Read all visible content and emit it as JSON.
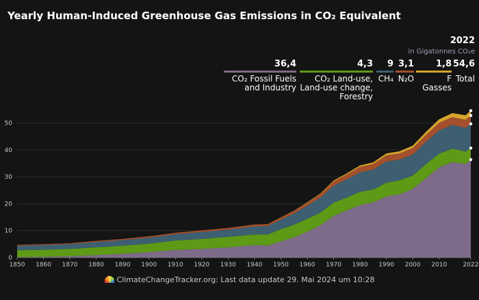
{
  "title": "Yearly Human-Induced Greenhouse Gas Emissions in CO₂ Equivalent",
  "summary": {
    "year": "2022",
    "unit": "in Gigatonnes CO₂e"
  },
  "legend": [
    {
      "value": "36,4",
      "label": "CO₂ Fossil Fuels\nand Industry",
      "color": "#7e6b8a"
    },
    {
      "value": "4,3",
      "label": "CO₂ Land-use,\nLand-use change,\nForestry",
      "color": "#5e9a16"
    },
    {
      "value": "9",
      "label": "CH₄",
      "color": "#3e5f72"
    },
    {
      "value": "3,1",
      "label": "N₂O",
      "color": "#a4502c"
    },
    {
      "value": "1,8",
      "label": "F Gasses",
      "color": "#d6a42c"
    },
    {
      "value": "54,6",
      "label": "Total",
      "color": "#141414"
    }
  ],
  "footer": "ClimateChangeTracker.org: Last data update 29. Mai 2024 um 10:28",
  "chart_data": {
    "type": "area",
    "stacked": true,
    "x": [
      1850,
      1860,
      1870,
      1880,
      1890,
      1900,
      1910,
      1920,
      1930,
      1940,
      1945,
      1950,
      1955,
      1960,
      1965,
      1970,
      1975,
      1980,
      1985,
      1990,
      1995,
      2000,
      2005,
      2010,
      2015,
      2020,
      2022
    ],
    "series": [
      {
        "name": "CO₂ Fossil Fuels and Industry",
        "color": "#7e6b8a",
        "values": [
          0.2,
          0.3,
          0.5,
          0.9,
          1.4,
          2.0,
          2.8,
          3.2,
          3.8,
          4.6,
          4.5,
          6.0,
          7.5,
          9.6,
          12.0,
          15.5,
          17.5,
          19.5,
          20.5,
          22.7,
          23.5,
          25.5,
          29.5,
          33.5,
          35.5,
          34.8,
          36.4
        ]
      },
      {
        "name": "CO₂ Land-use, Land-use change, Forestry",
        "color": "#5e9a16",
        "values": [
          2.5,
          2.6,
          2.7,
          2.9,
          3.0,
          3.2,
          3.5,
          3.7,
          3.9,
          4.0,
          4.1,
          4.5,
          4.7,
          4.8,
          4.7,
          4.9,
          4.8,
          4.9,
          4.8,
          5.1,
          5.2,
          5.0,
          5.2,
          5.1,
          5.0,
          4.6,
          4.3
        ]
      },
      {
        "name": "CH₄",
        "color": "#3e5f72",
        "values": [
          1.7,
          1.8,
          1.8,
          2.0,
          2.1,
          2.2,
          2.4,
          2.6,
          2.7,
          3.0,
          3.1,
          3.6,
          4.2,
          4.9,
          5.6,
          6.3,
          6.8,
          7.3,
          7.4,
          7.9,
          7.7,
          7.8,
          8.3,
          8.7,
          8.8,
          8.8,
          9.0
        ]
      },
      {
        "name": "N₂O",
        "color": "#a4502c",
        "values": [
          0.3,
          0.3,
          0.3,
          0.4,
          0.4,
          0.5,
          0.5,
          0.6,
          0.6,
          0.7,
          0.7,
          0.8,
          0.9,
          1.1,
          1.3,
          1.6,
          1.8,
          2.0,
          2.1,
          2.3,
          2.3,
          2.4,
          2.6,
          2.8,
          2.9,
          3.0,
          3.1
        ]
      },
      {
        "name": "F Gasses",
        "color": "#d6a42c",
        "values": [
          0,
          0,
          0,
          0,
          0,
          0,
          0,
          0,
          0,
          0,
          0,
          0.05,
          0.1,
          0.15,
          0.2,
          0.3,
          0.4,
          0.5,
          0.6,
          0.7,
          0.8,
          0.9,
          1.1,
          1.3,
          1.5,
          1.7,
          1.8
        ]
      }
    ],
    "xlim": [
      1850,
      2022
    ],
    "ylim": [
      0,
      55
    ],
    "x_ticks": [
      1850,
      1860,
      1870,
      1880,
      1890,
      1900,
      1910,
      1920,
      1930,
      1940,
      1950,
      1960,
      1970,
      1980,
      1990,
      2000,
      2010,
      2022
    ],
    "y_ticks": [
      0,
      10,
      20,
      30,
      40,
      50
    ],
    "grid": true
  }
}
